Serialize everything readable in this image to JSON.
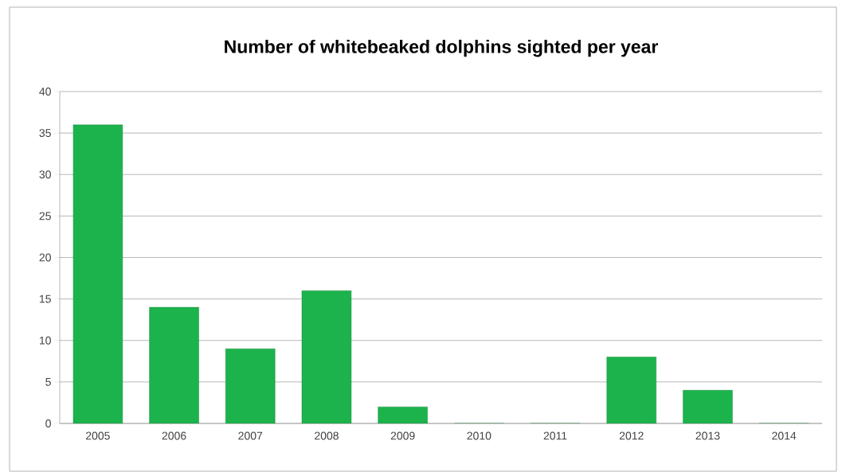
{
  "chart_data": {
    "type": "bar",
    "title": "Number of whitebeaked dolphins sighted per year",
    "categories": [
      "2005",
      "2006",
      "2007",
      "2008",
      "2009",
      "2010",
      "2011",
      "2012",
      "2013",
      "2014"
    ],
    "values": [
      36,
      14,
      9,
      16,
      2,
      0,
      0,
      8,
      4,
      0
    ],
    "color": "#1cb34c",
    "ylim": [
      0,
      40
    ],
    "yticks": [
      0,
      5,
      10,
      15,
      20,
      25,
      30,
      35,
      40
    ],
    "grid": "y"
  }
}
